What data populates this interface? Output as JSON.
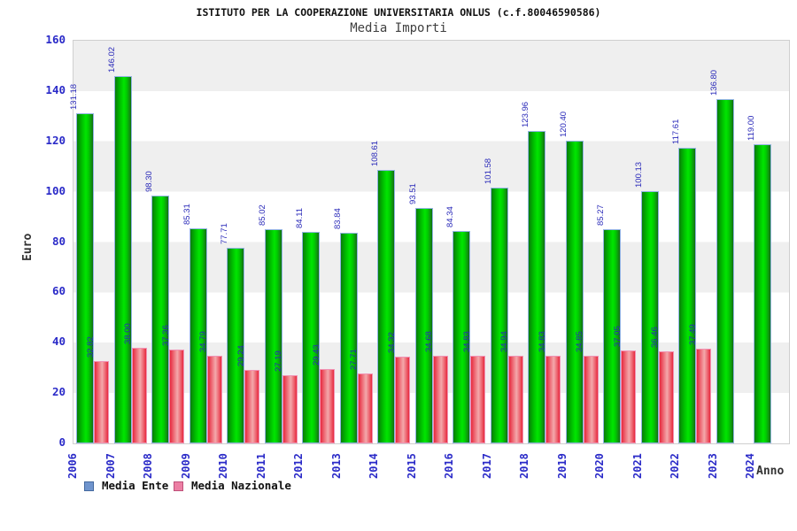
{
  "title": "ISTITUTO PER LA COOPERAZIONE UNIVERSITARIA ONLUS (c.f.80046590586)",
  "subtitle": "Media Importi",
  "y_axis": {
    "label": "Euro",
    "ticks": [
      0,
      20,
      40,
      60,
      80,
      100,
      120,
      140,
      160
    ]
  },
  "x_axis": {
    "label": "Anno"
  },
  "legend": [
    {
      "label": "Media Ente",
      "color": "#6f94cd",
      "border": "#44699f"
    },
    {
      "label": "Media Nazionale",
      "color": "#ec7fa4",
      "border": "#bf5079"
    }
  ],
  "colors": {
    "bar_ente_main": "#00dd00",
    "bar_nazionale_main": "#ee4455",
    "value_label": "#2a2ab9",
    "axis_label": "#2a2ac8",
    "band_gray": "#efefef"
  },
  "chart_data": {
    "type": "bar",
    "title": "Media Importi",
    "xlabel": "Anno",
    "ylabel": "Euro",
    "ylim": [
      0,
      160
    ],
    "grid": "horizontal-bands",
    "legend_position": "bottom-left",
    "categories": [
      "2006",
      "2007",
      "2008",
      "2009",
      "2010",
      "2011",
      "2012",
      "2013",
      "2014",
      "2015",
      "2016",
      "2017",
      "2018",
      "2019",
      "2020",
      "2021",
      "2022",
      "2023",
      "2024"
    ],
    "series": [
      {
        "name": "Media Ente",
        "values": [
          131.18,
          146.02,
          98.3,
          85.31,
          77.71,
          85.02,
          84.11,
          83.84,
          108.61,
          93.51,
          84.34,
          101.58,
          123.96,
          120.4,
          85.27,
          100.13,
          117.61,
          136.8,
          119.0
        ]
      },
      {
        "name": "Media Nazionale",
        "values": [
          32.82,
          38.0,
          37.36,
          34.79,
          29.24,
          27.19,
          29.43,
          27.71,
          34.32,
          34.68,
          34.83,
          34.94,
          34.83,
          34.85,
          37.05,
          36.46,
          37.49,
          null,
          null
        ]
      }
    ]
  }
}
